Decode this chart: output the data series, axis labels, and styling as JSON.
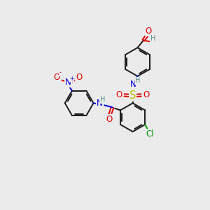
{
  "bg": "#ebebeb",
  "C": "#1a1a1a",
  "H": "#5a9090",
  "N": "#0000dd",
  "O": "#dd0000",
  "S": "#bbbb00",
  "Cl": "#009900",
  "lw": 1.4,
  "fs": 8.5,
  "fss": 7.0,
  "r": 0.68
}
